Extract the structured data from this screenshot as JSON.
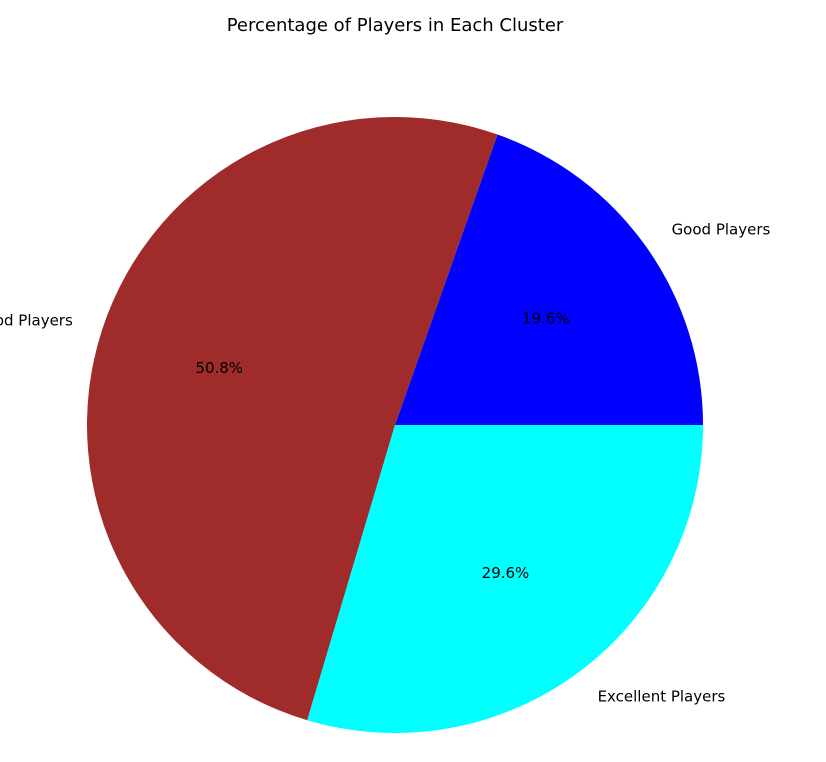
{
  "chart_data": {
    "type": "pie",
    "title": "Percentage of Players in Each Cluster",
    "slices": [
      {
        "label": "Good Players",
        "value": 19.6,
        "pct_label": "19.6%",
        "color": "#0000ff"
      },
      {
        "label": "Very Good Players",
        "value": 50.8,
        "pct_label": "50.8%",
        "color": "#a02b2b"
      },
      {
        "label": "Excellent Players",
        "value": 29.6,
        "pct_label": "29.6%",
        "color": "#00ffff"
      }
    ],
    "start_angle_deg": 0,
    "direction": "counterclockwise",
    "legend": "none"
  }
}
